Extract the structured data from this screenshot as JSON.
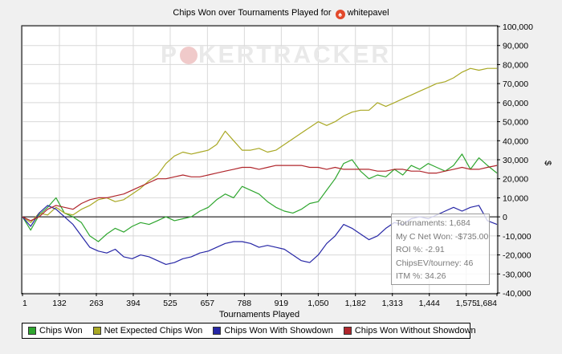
{
  "title": {
    "prefix": "Chips Won over Tournaments Played for",
    "icon": "spade-icon",
    "player": "whitepavel"
  },
  "watermark": {
    "left": "P",
    "middle": "KER",
    "right": "TRACKER"
  },
  "tooltip": {
    "lines": [
      "Tournaments: 1,684",
      "My C Net Won: -$735.00",
      "ROI %: -2.91",
      "ChipsEV/tourney: 46",
      "ITM %: 34.26"
    ]
  },
  "colors": {
    "chips_won": "#2fa62f",
    "net_expected": "#a9a824",
    "with_showdown": "#2727a6",
    "without_showdown": "#b0262c",
    "plot_bg": "#ffffff",
    "grid": "#d8d8d8"
  },
  "chart_data": {
    "type": "line",
    "title": "Chips Won over Tournaments Played for whitepavel",
    "xlabel": "Tournaments Played",
    "ylabel": "$",
    "xlim": [
      1,
      1684
    ],
    "ylim": [
      -40000,
      100000
    ],
    "x_ticks": [
      1,
      132,
      263,
      394,
      525,
      657,
      788,
      919,
      1050,
      1182,
      1313,
      1444,
      1575,
      1684
    ],
    "x_tick_labels": [
      "1",
      "132",
      "263",
      "394",
      "525",
      "657",
      "788",
      "919",
      "1,050",
      "1,182",
      "1,313",
      "1,444",
      "1,575",
      "1,684"
    ],
    "y_ticks": [
      -40000,
      -30000,
      -20000,
      -10000,
      0,
      10000,
      20000,
      30000,
      40000,
      50000,
      60000,
      70000,
      80000,
      90000,
      100000
    ],
    "y_tick_labels": [
      "-40,000",
      "-30,000",
      "-20,000",
      "-10,000",
      "0",
      "10,000",
      "20,000",
      "30,000",
      "40,000",
      "50,000",
      "60,000",
      "70,000",
      "80,000",
      "90,000",
      "100,000"
    ],
    "grid": true,
    "legend_position": "bottom",
    "x": [
      1,
      30,
      60,
      90,
      120,
      150,
      180,
      210,
      240,
      270,
      300,
      330,
      360,
      390,
      420,
      450,
      480,
      510,
      540,
      570,
      600,
      630,
      660,
      690,
      720,
      750,
      780,
      810,
      840,
      870,
      900,
      930,
      960,
      990,
      1020,
      1050,
      1080,
      1110,
      1140,
      1170,
      1200,
      1230,
      1260,
      1290,
      1320,
      1350,
      1380,
      1410,
      1440,
      1470,
      1500,
      1530,
      1560,
      1590,
      1620,
      1650,
      1684
    ],
    "series": [
      {
        "name": "Chips Won",
        "color": "#2fa62f",
        "values": [
          0,
          -7000,
          1000,
          5000,
          10000,
          2000,
          0,
          -3000,
          -10000,
          -13000,
          -9000,
          -6000,
          -8000,
          -5000,
          -3000,
          -4000,
          -2000,
          0,
          -2000,
          -1000,
          0,
          3000,
          5000,
          9000,
          12000,
          10000,
          16000,
          14000,
          12000,
          8000,
          5000,
          3000,
          2000,
          4000,
          7000,
          8000,
          14000,
          20000,
          28000,
          30000,
          24000,
          20000,
          22000,
          21000,
          25000,
          22000,
          27000,
          25000,
          28000,
          26000,
          24000,
          27000,
          33000,
          25000,
          31000,
          27000,
          23000
        ]
      },
      {
        "name": "Net Expected Chips Won",
        "color": "#a9a824",
        "values": [
          0,
          -3000,
          2000,
          1000,
          5000,
          2000,
          1000,
          4000,
          6000,
          9000,
          10000,
          8000,
          9000,
          12000,
          15000,
          19000,
          22000,
          28000,
          32000,
          34000,
          33000,
          34000,
          35000,
          38000,
          45000,
          40000,
          35000,
          35000,
          36000,
          34000,
          35000,
          38000,
          41000,
          44000,
          47000,
          50000,
          48000,
          50000,
          53000,
          55000,
          56000,
          56000,
          60000,
          58000,
          60000,
          62000,
          64000,
          66000,
          68000,
          70000,
          71000,
          73000,
          76000,
          78000,
          77000,
          78000,
          78000
        ]
      },
      {
        "name": "Chips Won With Showdown",
        "color": "#2727a6",
        "values": [
          0,
          -5000,
          2000,
          6000,
          4000,
          0,
          -4000,
          -10000,
          -16000,
          -18000,
          -19000,
          -17000,
          -21000,
          -22000,
          -20000,
          -21000,
          -23000,
          -25000,
          -24000,
          -22000,
          -21000,
          -19000,
          -18000,
          -16000,
          -14000,
          -13000,
          -13000,
          -14000,
          -16000,
          -15000,
          -16000,
          -17000,
          -20000,
          -23000,
          -24000,
          -20000,
          -14000,
          -10000,
          -4000,
          -6000,
          -9000,
          -12000,
          -10000,
          -6000,
          -3000,
          -4000,
          -1000,
          0,
          -1000,
          1000,
          3000,
          5000,
          3000,
          5000,
          6000,
          -2000,
          -4000
        ]
      },
      {
        "name": "Chips Won Without Showdown",
        "color": "#b0262c",
        "values": [
          0,
          -2000,
          0,
          4000,
          6000,
          5000,
          4000,
          7000,
          9000,
          10000,
          10000,
          11000,
          12000,
          14000,
          16000,
          18000,
          20000,
          20000,
          21000,
          22000,
          21000,
          21000,
          22000,
          23000,
          24000,
          25000,
          26000,
          26000,
          25000,
          26000,
          27000,
          27000,
          27000,
          27000,
          26000,
          26000,
          25000,
          26000,
          25000,
          25000,
          25000,
          25000,
          24000,
          24000,
          25000,
          25000,
          24000,
          24000,
          23000,
          23000,
          24000,
          25000,
          26000,
          25000,
          25000,
          26000,
          27000
        ]
      }
    ]
  },
  "legend": {
    "items": [
      {
        "label": "Chips Won",
        "color": "#2fa62f"
      },
      {
        "label": "Net Expected Chips Won",
        "color": "#a9a824"
      },
      {
        "label": "Chips Won With Showdown",
        "color": "#2727a6"
      },
      {
        "label": "Chips Won Without Showdown",
        "color": "#b0262c"
      }
    ]
  }
}
